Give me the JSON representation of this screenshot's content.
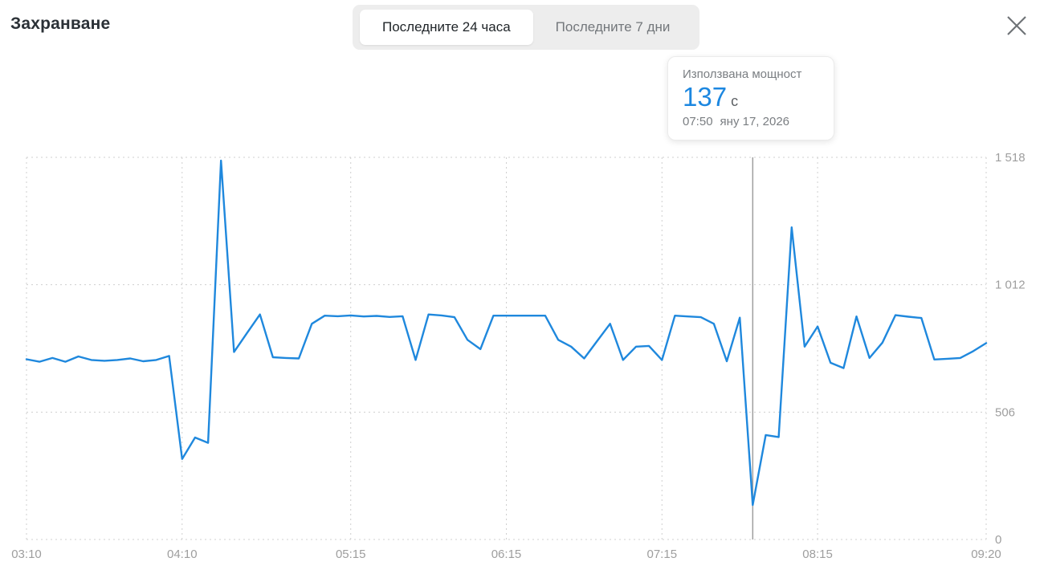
{
  "header": {
    "title": "Захранване",
    "tabs": [
      {
        "label": "Последните 24 часа",
        "active": true
      },
      {
        "label": "Последните 7 дни",
        "active": false
      }
    ]
  },
  "icons": {
    "close": "✕"
  },
  "tooltip": {
    "label": "Използвана мощност",
    "value": "137",
    "unit": "с",
    "time": "07:50",
    "date": "яну 17, 2026"
  },
  "colors": {
    "line": "#1f88dd",
    "value_accent": "#1c87e0",
    "grid": "#cfcfcf",
    "axis_label": "#9e9e9e",
    "cursor": "#9e9e9e"
  },
  "chart_data": {
    "type": "line",
    "title": "Захранване — Използвана мощност",
    "xlabel": "",
    "ylabel": "",
    "ylim": [
      0,
      1518
    ],
    "grid": true,
    "x_start": "03:10",
    "x_end": "09:20",
    "x_interval_minutes": 5,
    "x_total_minutes": 370,
    "y_ticks": [
      {
        "label": "0",
        "value": 0
      },
      {
        "label": "506",
        "value": 506
      },
      {
        "label": "1 012",
        "value": 1012
      },
      {
        "label": "1 518",
        "value": 1518
      }
    ],
    "x_ticks": [
      {
        "label": "03:10",
        "minute": 0
      },
      {
        "label": "04:10",
        "minute": 60
      },
      {
        "label": "05:15",
        "minute": 125
      },
      {
        "label": "06:15",
        "minute": 185
      },
      {
        "label": "07:15",
        "minute": 245
      },
      {
        "label": "08:15",
        "minute": 305
      },
      {
        "label": "09:20",
        "minute": 370
      }
    ],
    "series": [
      {
        "name": "Използвана мощност",
        "color": "#1f88dd",
        "values": [
          716,
          706,
          721,
          706,
          727,
          713,
          710,
          713,
          719,
          708,
          713,
          729,
          320,
          405,
          384,
          1505,
          745,
          820,
          894,
          724,
          721,
          719,
          857,
          889,
          887,
          890,
          886,
          888,
          884,
          887,
          713,
          894,
          890,
          883,
          793,
          756,
          889,
          889,
          889,
          889,
          889,
          793,
          766,
          719,
          788,
          857,
          713,
          766,
          769,
          713,
          889,
          886,
          883,
          857,
          708,
          881,
          137,
          415,
          407,
          1240,
          766,
          846,
          702,
          681,
          886,
          721,
          782,
          891,
          885,
          880,
          715,
          718,
          721,
          748,
          780
        ]
      }
    ],
    "highlight": {
      "index": 56,
      "minute": 280,
      "time": "07:50",
      "value": 137
    }
  }
}
